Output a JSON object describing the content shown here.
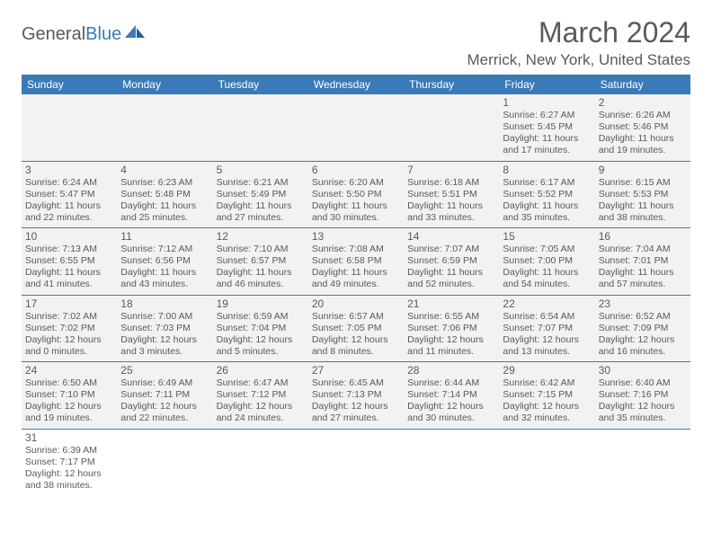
{
  "brand": {
    "part1": "General",
    "part2": "Blue"
  },
  "title": "March 2024",
  "location": "Merrick, New York, United States",
  "colors": {
    "header_bg": "#3a7ab8",
    "header_text": "#ffffff",
    "cell_bg": "#f2f2f2",
    "text": "#5a5a5a",
    "border": "#3a7ab8",
    "page_bg": "#ffffff"
  },
  "day_names": [
    "Sunday",
    "Monday",
    "Tuesday",
    "Wednesday",
    "Thursday",
    "Friday",
    "Saturday"
  ],
  "weeks": [
    [
      null,
      null,
      null,
      null,
      null,
      {
        "n": "1",
        "sr": "Sunrise: 6:27 AM",
        "ss": "Sunset: 5:45 PM",
        "d1": "Daylight: 11 hours",
        "d2": "and 17 minutes."
      },
      {
        "n": "2",
        "sr": "Sunrise: 6:26 AM",
        "ss": "Sunset: 5:46 PM",
        "d1": "Daylight: 11 hours",
        "d2": "and 19 minutes."
      }
    ],
    [
      {
        "n": "3",
        "sr": "Sunrise: 6:24 AM",
        "ss": "Sunset: 5:47 PM",
        "d1": "Daylight: 11 hours",
        "d2": "and 22 minutes."
      },
      {
        "n": "4",
        "sr": "Sunrise: 6:23 AM",
        "ss": "Sunset: 5:48 PM",
        "d1": "Daylight: 11 hours",
        "d2": "and 25 minutes."
      },
      {
        "n": "5",
        "sr": "Sunrise: 6:21 AM",
        "ss": "Sunset: 5:49 PM",
        "d1": "Daylight: 11 hours",
        "d2": "and 27 minutes."
      },
      {
        "n": "6",
        "sr": "Sunrise: 6:20 AM",
        "ss": "Sunset: 5:50 PM",
        "d1": "Daylight: 11 hours",
        "d2": "and 30 minutes."
      },
      {
        "n": "7",
        "sr": "Sunrise: 6:18 AM",
        "ss": "Sunset: 5:51 PM",
        "d1": "Daylight: 11 hours",
        "d2": "and 33 minutes."
      },
      {
        "n": "8",
        "sr": "Sunrise: 6:17 AM",
        "ss": "Sunset: 5:52 PM",
        "d1": "Daylight: 11 hours",
        "d2": "and 35 minutes."
      },
      {
        "n": "9",
        "sr": "Sunrise: 6:15 AM",
        "ss": "Sunset: 5:53 PM",
        "d1": "Daylight: 11 hours",
        "d2": "and 38 minutes."
      }
    ],
    [
      {
        "n": "10",
        "sr": "Sunrise: 7:13 AM",
        "ss": "Sunset: 6:55 PM",
        "d1": "Daylight: 11 hours",
        "d2": "and 41 minutes."
      },
      {
        "n": "11",
        "sr": "Sunrise: 7:12 AM",
        "ss": "Sunset: 6:56 PM",
        "d1": "Daylight: 11 hours",
        "d2": "and 43 minutes."
      },
      {
        "n": "12",
        "sr": "Sunrise: 7:10 AM",
        "ss": "Sunset: 6:57 PM",
        "d1": "Daylight: 11 hours",
        "d2": "and 46 minutes."
      },
      {
        "n": "13",
        "sr": "Sunrise: 7:08 AM",
        "ss": "Sunset: 6:58 PM",
        "d1": "Daylight: 11 hours",
        "d2": "and 49 minutes."
      },
      {
        "n": "14",
        "sr": "Sunrise: 7:07 AM",
        "ss": "Sunset: 6:59 PM",
        "d1": "Daylight: 11 hours",
        "d2": "and 52 minutes."
      },
      {
        "n": "15",
        "sr": "Sunrise: 7:05 AM",
        "ss": "Sunset: 7:00 PM",
        "d1": "Daylight: 11 hours",
        "d2": "and 54 minutes."
      },
      {
        "n": "16",
        "sr": "Sunrise: 7:04 AM",
        "ss": "Sunset: 7:01 PM",
        "d1": "Daylight: 11 hours",
        "d2": "and 57 minutes."
      }
    ],
    [
      {
        "n": "17",
        "sr": "Sunrise: 7:02 AM",
        "ss": "Sunset: 7:02 PM",
        "d1": "Daylight: 12 hours",
        "d2": "and 0 minutes."
      },
      {
        "n": "18",
        "sr": "Sunrise: 7:00 AM",
        "ss": "Sunset: 7:03 PM",
        "d1": "Daylight: 12 hours",
        "d2": "and 3 minutes."
      },
      {
        "n": "19",
        "sr": "Sunrise: 6:59 AM",
        "ss": "Sunset: 7:04 PM",
        "d1": "Daylight: 12 hours",
        "d2": "and 5 minutes."
      },
      {
        "n": "20",
        "sr": "Sunrise: 6:57 AM",
        "ss": "Sunset: 7:05 PM",
        "d1": "Daylight: 12 hours",
        "d2": "and 8 minutes."
      },
      {
        "n": "21",
        "sr": "Sunrise: 6:55 AM",
        "ss": "Sunset: 7:06 PM",
        "d1": "Daylight: 12 hours",
        "d2": "and 11 minutes."
      },
      {
        "n": "22",
        "sr": "Sunrise: 6:54 AM",
        "ss": "Sunset: 7:07 PM",
        "d1": "Daylight: 12 hours",
        "d2": "and 13 minutes."
      },
      {
        "n": "23",
        "sr": "Sunrise: 6:52 AM",
        "ss": "Sunset: 7:09 PM",
        "d1": "Daylight: 12 hours",
        "d2": "and 16 minutes."
      }
    ],
    [
      {
        "n": "24",
        "sr": "Sunrise: 6:50 AM",
        "ss": "Sunset: 7:10 PM",
        "d1": "Daylight: 12 hours",
        "d2": "and 19 minutes."
      },
      {
        "n": "25",
        "sr": "Sunrise: 6:49 AM",
        "ss": "Sunset: 7:11 PM",
        "d1": "Daylight: 12 hours",
        "d2": "and 22 minutes."
      },
      {
        "n": "26",
        "sr": "Sunrise: 6:47 AM",
        "ss": "Sunset: 7:12 PM",
        "d1": "Daylight: 12 hours",
        "d2": "and 24 minutes."
      },
      {
        "n": "27",
        "sr": "Sunrise: 6:45 AM",
        "ss": "Sunset: 7:13 PM",
        "d1": "Daylight: 12 hours",
        "d2": "and 27 minutes."
      },
      {
        "n": "28",
        "sr": "Sunrise: 6:44 AM",
        "ss": "Sunset: 7:14 PM",
        "d1": "Daylight: 12 hours",
        "d2": "and 30 minutes."
      },
      {
        "n": "29",
        "sr": "Sunrise: 6:42 AM",
        "ss": "Sunset: 7:15 PM",
        "d1": "Daylight: 12 hours",
        "d2": "and 32 minutes."
      },
      {
        "n": "30",
        "sr": "Sunrise: 6:40 AM",
        "ss": "Sunset: 7:16 PM",
        "d1": "Daylight: 12 hours",
        "d2": "and 35 minutes."
      }
    ],
    [
      {
        "n": "31",
        "sr": "Sunrise: 6:39 AM",
        "ss": "Sunset: 7:17 PM",
        "d1": "Daylight: 12 hours",
        "d2": "and 38 minutes."
      },
      null,
      null,
      null,
      null,
      null,
      null
    ]
  ]
}
